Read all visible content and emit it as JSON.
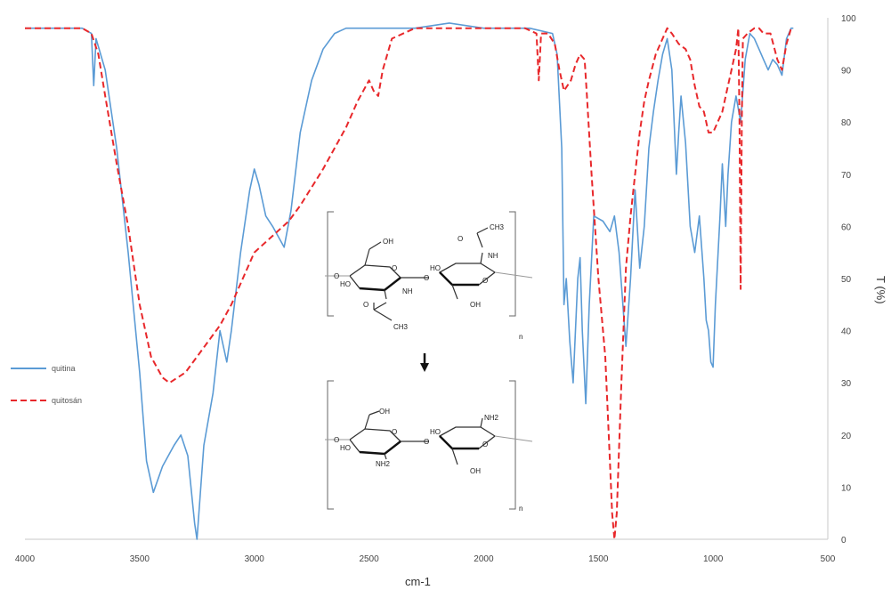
{
  "chart_data": {
    "type": "line",
    "title": "",
    "xlabel": "cm-1",
    "ylabel": "T (%)",
    "xlim": [
      4000,
      500
    ],
    "ylim": [
      0,
      100
    ],
    "x_reversed": true,
    "grid": false,
    "legend_position": "left",
    "x_ticks": [
      "4000",
      "3500",
      "3000",
      "2500",
      "2000",
      "1500",
      "1000",
      "500"
    ],
    "y_ticks": [
      "0",
      "10",
      "20",
      "30",
      "40",
      "50",
      "60",
      "70",
      "80",
      "90",
      "100"
    ],
    "series": [
      {
        "name": "quitina",
        "color": "#5b9bd5",
        "style": "solid",
        "points": [
          [
            4000,
            98
          ],
          [
            3850,
            98
          ],
          [
            3750,
            98
          ],
          [
            3710,
            97
          ],
          [
            3700,
            87
          ],
          [
            3690,
            96
          ],
          [
            3650,
            90
          ],
          [
            3600,
            75
          ],
          [
            3550,
            55
          ],
          [
            3500,
            32
          ],
          [
            3470,
            15
          ],
          [
            3440,
            9
          ],
          [
            3400,
            14
          ],
          [
            3350,
            18
          ],
          [
            3320,
            20
          ],
          [
            3290,
            16
          ],
          [
            3260,
            3
          ],
          [
            3250,
            0
          ],
          [
            3220,
            18
          ],
          [
            3180,
            28
          ],
          [
            3150,
            40
          ],
          [
            3120,
            34
          ],
          [
            3100,
            40
          ],
          [
            3060,
            55
          ],
          [
            3020,
            67
          ],
          [
            3000,
            71
          ],
          [
            2980,
            68
          ],
          [
            2950,
            62
          ],
          [
            2920,
            60
          ],
          [
            2870,
            56
          ],
          [
            2840,
            63
          ],
          [
            2800,
            78
          ],
          [
            2750,
            88
          ],
          [
            2700,
            94
          ],
          [
            2650,
            97
          ],
          [
            2600,
            98
          ],
          [
            2500,
            98
          ],
          [
            2300,
            98
          ],
          [
            2150,
            99
          ],
          [
            2000,
            98
          ],
          [
            1800,
            98
          ],
          [
            1700,
            97
          ],
          [
            1680,
            93
          ],
          [
            1660,
            75
          ],
          [
            1650,
            45
          ],
          [
            1640,
            50
          ],
          [
            1625,
            38
          ],
          [
            1610,
            30
          ],
          [
            1600,
            40
          ],
          [
            1590,
            50
          ],
          [
            1580,
            54
          ],
          [
            1570,
            40
          ],
          [
            1555,
            26
          ],
          [
            1540,
            45
          ],
          [
            1520,
            62
          ],
          [
            1480,
            61
          ],
          [
            1450,
            59
          ],
          [
            1430,
            62
          ],
          [
            1410,
            55
          ],
          [
            1380,
            37
          ],
          [
            1360,
            50
          ],
          [
            1340,
            67
          ],
          [
            1320,
            52
          ],
          [
            1300,
            60
          ],
          [
            1280,
            75
          ],
          [
            1260,
            82
          ],
          [
            1240,
            88
          ],
          [
            1220,
            93
          ],
          [
            1200,
            96
          ],
          [
            1180,
            90
          ],
          [
            1160,
            70
          ],
          [
            1150,
            78
          ],
          [
            1140,
            85
          ],
          [
            1120,
            76
          ],
          [
            1100,
            60
          ],
          [
            1080,
            55
          ],
          [
            1060,
            62
          ],
          [
            1040,
            50
          ],
          [
            1030,
            42
          ],
          [
            1020,
            40
          ],
          [
            1010,
            34
          ],
          [
            1000,
            33
          ],
          [
            990,
            45
          ],
          [
            970,
            62
          ],
          [
            960,
            72
          ],
          [
            945,
            60
          ],
          [
            935,
            70
          ],
          [
            920,
            80
          ],
          [
            900,
            85
          ],
          [
            880,
            80
          ],
          [
            860,
            92
          ],
          [
            840,
            97
          ],
          [
            820,
            96
          ],
          [
            800,
            94
          ],
          [
            780,
            92
          ],
          [
            760,
            90
          ],
          [
            740,
            92
          ],
          [
            720,
            91
          ],
          [
            700,
            89
          ],
          [
            680,
            96
          ],
          [
            660,
            98
          ],
          [
            650,
            98
          ]
        ]
      },
      {
        "name": "quitosán",
        "color": "#e8282b",
        "style": "dashed",
        "points": [
          [
            4000,
            98
          ],
          [
            3850,
            98
          ],
          [
            3750,
            98
          ],
          [
            3710,
            97
          ],
          [
            3680,
            93
          ],
          [
            3650,
            85
          ],
          [
            3600,
            72
          ],
          [
            3550,
            60
          ],
          [
            3500,
            45
          ],
          [
            3450,
            35
          ],
          [
            3400,
            31
          ],
          [
            3370,
            30
          ],
          [
            3300,
            32
          ],
          [
            3200,
            38
          ],
          [
            3150,
            41
          ],
          [
            3100,
            45
          ],
          [
            3050,
            50
          ],
          [
            3000,
            55
          ],
          [
            2950,
            57
          ],
          [
            2900,
            59
          ],
          [
            2850,
            61
          ],
          [
            2800,
            64
          ],
          [
            2700,
            71
          ],
          [
            2600,
            79
          ],
          [
            2550,
            84
          ],
          [
            2500,
            88
          ],
          [
            2480,
            86
          ],
          [
            2460,
            85
          ],
          [
            2440,
            90
          ],
          [
            2400,
            96
          ],
          [
            2300,
            98
          ],
          [
            2150,
            98
          ],
          [
            2000,
            98
          ],
          [
            1820,
            98
          ],
          [
            1770,
            97
          ],
          [
            1760,
            88
          ],
          [
            1750,
            97
          ],
          [
            1720,
            97
          ],
          [
            1690,
            95
          ],
          [
            1670,
            90
          ],
          [
            1650,
            86
          ],
          [
            1620,
            88
          ],
          [
            1600,
            91
          ],
          [
            1580,
            93
          ],
          [
            1560,
            92
          ],
          [
            1550,
            85
          ],
          [
            1530,
            70
          ],
          [
            1500,
            50
          ],
          [
            1470,
            35
          ],
          [
            1450,
            15
          ],
          [
            1440,
            5
          ],
          [
            1430,
            0
          ],
          [
            1420,
            5
          ],
          [
            1400,
            30
          ],
          [
            1380,
            52
          ],
          [
            1360,
            62
          ],
          [
            1340,
            70
          ],
          [
            1320,
            78
          ],
          [
            1300,
            84
          ],
          [
            1280,
            88
          ],
          [
            1250,
            93
          ],
          [
            1220,
            96
          ],
          [
            1200,
            98
          ],
          [
            1180,
            97
          ],
          [
            1150,
            95
          ],
          [
            1120,
            94
          ],
          [
            1100,
            92
          ],
          [
            1080,
            87
          ],
          [
            1060,
            83
          ],
          [
            1040,
            82
          ],
          [
            1020,
            78
          ],
          [
            1000,
            78
          ],
          [
            980,
            80
          ],
          [
            960,
            82
          ],
          [
            940,
            86
          ],
          [
            920,
            90
          ],
          [
            900,
            94
          ],
          [
            890,
            98
          ],
          [
            885,
            80
          ],
          [
            880,
            48
          ],
          [
            875,
            80
          ],
          [
            870,
            96
          ],
          [
            850,
            97
          ],
          [
            820,
            98
          ],
          [
            800,
            98
          ],
          [
            780,
            97
          ],
          [
            750,
            97
          ],
          [
            720,
            92
          ],
          [
            700,
            90
          ],
          [
            680,
            95
          ],
          [
            660,
            98
          ],
          [
            650,
            98
          ]
        ]
      }
    ],
    "inset": {
      "labels": [
        "OH",
        "OH",
        "NH",
        "NH",
        "HO",
        "HO",
        "O",
        "O",
        "O",
        "O",
        "O",
        "O",
        "CH3",
        "CH3",
        "n",
        "OH",
        "OH",
        "NH2",
        "NH2",
        "HO",
        "HO",
        "O",
        "O",
        "O",
        "O",
        "n"
      ]
    }
  }
}
